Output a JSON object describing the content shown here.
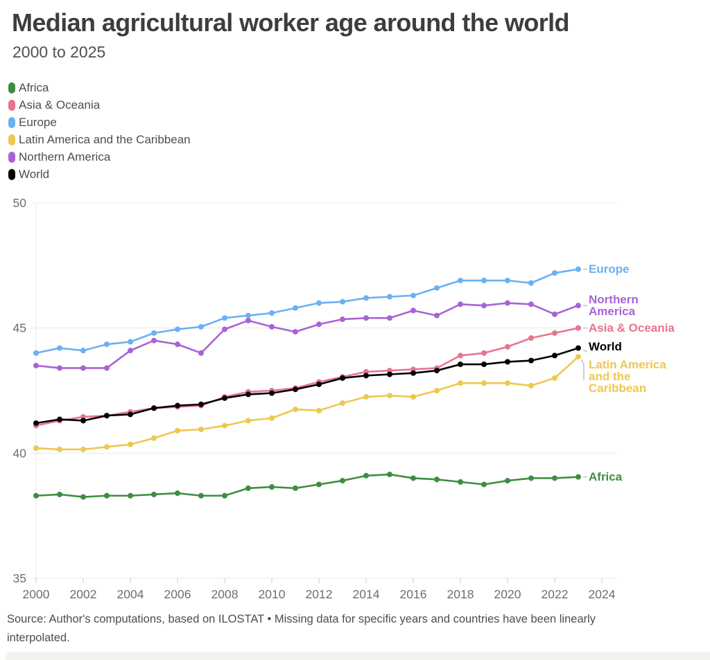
{
  "colors": {
    "title": "#3d3d3d",
    "subtitle": "#4f4f4f",
    "legend_text": "#4d4d4d",
    "axis_text": "#6e6e6e",
    "gridline": "#e9e9e9",
    "tick": "#c9c9c9",
    "connector": "#c0c0c0",
    "source_text": "#4d4d4d",
    "bottom_bar": "#f3f2ef"
  },
  "chart_data": {
    "type": "line",
    "title": "Median agricultural worker age around the world",
    "subtitle": "2000 to 2025",
    "source": "Source: Author's computations, based on ILOSTAT • Missing data for specific years and countries have been linearly interpolated.",
    "x": [
      2000,
      2001,
      2002,
      2003,
      2004,
      2005,
      2006,
      2007,
      2008,
      2009,
      2010,
      2011,
      2012,
      2013,
      2014,
      2015,
      2016,
      2017,
      2018,
      2019,
      2020,
      2021,
      2022,
      2023
    ],
    "x_tick_labels": [
      "2000",
      "2002",
      "2004",
      "2006",
      "2008",
      "2010",
      "2012",
      "2014",
      "2016",
      "2018",
      "2020",
      "2022",
      "2024"
    ],
    "y_ticks": [
      35,
      40,
      45,
      50
    ],
    "ylim": [
      35,
      50
    ],
    "xlim": [
      2000,
      2024
    ],
    "grid": "horizontal",
    "legend_position": "top-left",
    "point_markers": true,
    "series": [
      {
        "name": "Africa",
        "color": "#3e8e41",
        "values": [
          38.3,
          38.35,
          38.25,
          38.3,
          38.3,
          38.35,
          38.4,
          38.3,
          38.3,
          38.6,
          38.65,
          38.6,
          38.75,
          38.9,
          39.1,
          39.15,
          39.0,
          38.95,
          38.85,
          38.75,
          38.9,
          39.0,
          39.0,
          39.05
        ]
      },
      {
        "name": "Asia & Oceania",
        "color": "#e7758f",
        "values": [
          41.1,
          41.3,
          41.45,
          41.5,
          41.65,
          41.8,
          41.85,
          41.9,
          42.25,
          42.45,
          42.5,
          42.6,
          42.85,
          43.05,
          43.25,
          43.3,
          43.35,
          43.4,
          43.9,
          44.0,
          44.25,
          44.6,
          44.8,
          45.0
        ]
      },
      {
        "name": "Europe",
        "color": "#6ab0f3",
        "values": [
          44.0,
          44.2,
          44.1,
          44.35,
          44.45,
          44.8,
          44.95,
          45.05,
          45.4,
          45.5,
          45.6,
          45.8,
          46.0,
          46.05,
          46.2,
          46.25,
          46.3,
          46.6,
          46.9,
          46.9,
          46.9,
          46.8,
          47.2,
          47.35
        ]
      },
      {
        "name": "Latin America and the Caribbean",
        "color": "#edc84e",
        "values": [
          40.2,
          40.15,
          40.15,
          40.25,
          40.35,
          40.6,
          40.9,
          40.95,
          41.1,
          41.3,
          41.4,
          41.75,
          41.7,
          42.0,
          42.25,
          42.3,
          42.25,
          42.5,
          42.8,
          42.8,
          42.8,
          42.7,
          43.0,
          43.85
        ]
      },
      {
        "name": "Northern America",
        "color": "#a863d6",
        "values": [
          43.5,
          43.4,
          43.4,
          43.4,
          44.1,
          44.5,
          44.35,
          44.0,
          44.95,
          45.3,
          45.05,
          44.85,
          45.15,
          45.35,
          45.4,
          45.4,
          45.7,
          45.5,
          45.95,
          45.9,
          46.0,
          45.95,
          45.55,
          45.9
        ]
      },
      {
        "name": "World",
        "color": "#000000",
        "values": [
          41.2,
          41.35,
          41.3,
          41.5,
          41.55,
          41.8,
          41.9,
          41.95,
          42.2,
          42.35,
          42.4,
          42.55,
          42.75,
          43.0,
          43.1,
          43.15,
          43.2,
          43.3,
          43.55,
          43.55,
          43.65,
          43.7,
          43.9,
          44.2
        ]
      }
    ],
    "right_labels": [
      {
        "series": "Europe",
        "text": "Europe"
      },
      {
        "series": "Northern America",
        "text": "Northern America"
      },
      {
        "series": "Asia & Oceania",
        "text": "Asia & Oceania"
      },
      {
        "series": "World",
        "text": "World"
      },
      {
        "series": "Latin America and the Caribbean",
        "text": "Latin America and the Caribbean"
      },
      {
        "series": "Africa",
        "text": "Africa"
      }
    ]
  }
}
